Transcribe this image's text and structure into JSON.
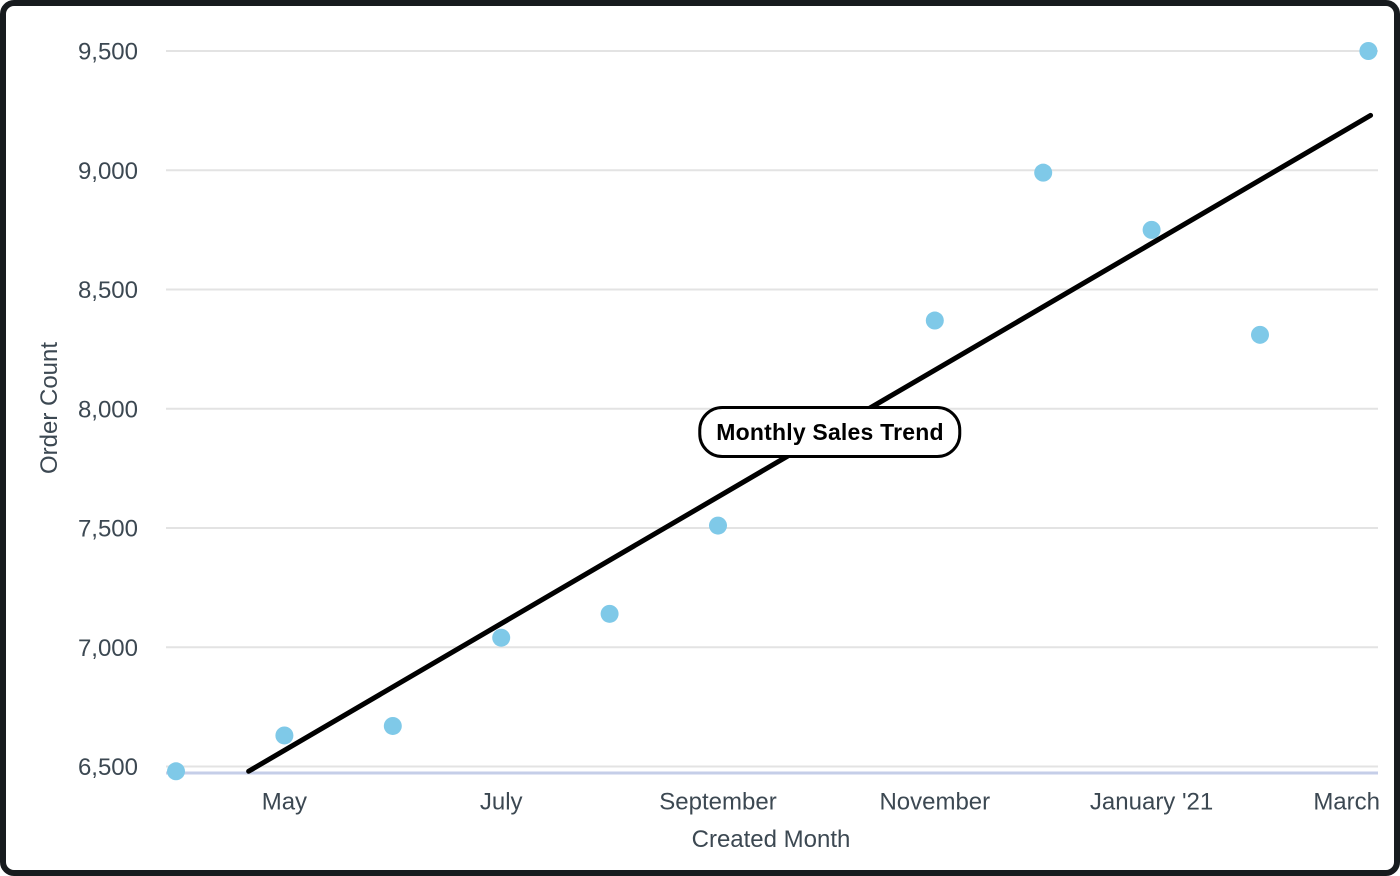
{
  "frame": {
    "background": "#ffffff",
    "border_color": "#171b1e"
  },
  "chart_data": {
    "type": "scatter",
    "title": "Monthly Sales Trend",
    "xlabel": "Created Month",
    "ylabel": "Order Count",
    "ylim": [
      6500,
      9500
    ],
    "grid": true,
    "legend": "none",
    "y_ticks": [
      {
        "value": 6500,
        "label": "6,500"
      },
      {
        "value": 7000,
        "label": "7,000"
      },
      {
        "value": 7500,
        "label": "7,500"
      },
      {
        "value": 8000,
        "label": "8,000"
      },
      {
        "value": 8500,
        "label": "8,500"
      },
      {
        "value": 9000,
        "label": "9,000"
      },
      {
        "value": 9500,
        "label": "9,500"
      }
    ],
    "x_tick_labels": [
      {
        "label": "May",
        "month_index": 1
      },
      {
        "label": "July",
        "month_index": 3
      },
      {
        "label": "September",
        "month_index": 5
      },
      {
        "label": "November",
        "month_index": 7
      },
      {
        "label": "January '21",
        "month_index": 9
      },
      {
        "label": "March",
        "month_index": 11
      }
    ],
    "points": [
      {
        "month": "April",
        "month_index": 0,
        "value": 6480
      },
      {
        "month": "May",
        "month_index": 1,
        "value": 6630
      },
      {
        "month": "June",
        "month_index": 2,
        "value": 6670
      },
      {
        "month": "July",
        "month_index": 3,
        "value": 7040
      },
      {
        "month": "August",
        "month_index": 4,
        "value": 7140
      },
      {
        "month": "September",
        "month_index": 5,
        "value": 7510
      },
      {
        "month": "November",
        "month_index": 7,
        "value": 8370
      },
      {
        "month": "December",
        "month_index": 8,
        "value": 8990
      },
      {
        "month": "January '21",
        "month_index": 9,
        "value": 8750
      },
      {
        "month": "February",
        "month_index": 10,
        "value": 8310
      },
      {
        "month": "March",
        "month_index": 11,
        "value": 9500
      }
    ],
    "trend_line": {
      "start": {
        "month_index": 0.67,
        "value": 6480
      },
      "end": {
        "month_index": 11.02,
        "value": 9230
      }
    },
    "colors": {
      "point": "#7fc9e8",
      "trend": "#000000",
      "grid": "#e3e3e3",
      "axis_line": "#c5cee8",
      "label": "#3c4852"
    }
  }
}
